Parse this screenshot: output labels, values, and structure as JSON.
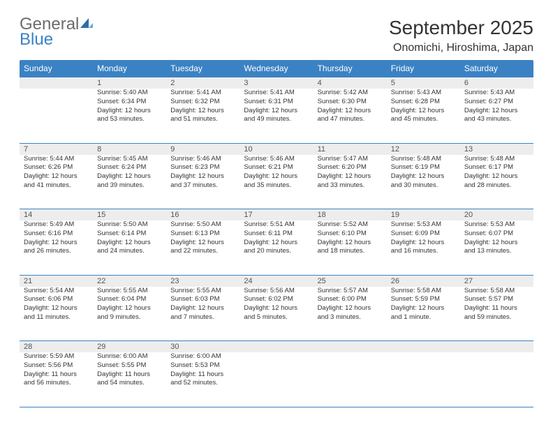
{
  "logo": {
    "word1": "General",
    "word2": "Blue"
  },
  "title": "September 2025",
  "location": "Onomichi, Hiroshima, Japan",
  "colors": {
    "brand_blue": "#3b82c4",
    "header_gray": "#6b6b6b",
    "daynum_bg": "#ededed",
    "text": "#333333",
    "background": "#ffffff"
  },
  "dow": [
    "Sunday",
    "Monday",
    "Tuesday",
    "Wednesday",
    "Thursday",
    "Friday",
    "Saturday"
  ],
  "weeks": [
    [
      null,
      {
        "n": "1",
        "l": [
          "Sunrise: 5:40 AM",
          "Sunset: 6:34 PM",
          "Daylight: 12 hours",
          "and 53 minutes."
        ]
      },
      {
        "n": "2",
        "l": [
          "Sunrise: 5:41 AM",
          "Sunset: 6:32 PM",
          "Daylight: 12 hours",
          "and 51 minutes."
        ]
      },
      {
        "n": "3",
        "l": [
          "Sunrise: 5:41 AM",
          "Sunset: 6:31 PM",
          "Daylight: 12 hours",
          "and 49 minutes."
        ]
      },
      {
        "n": "4",
        "l": [
          "Sunrise: 5:42 AM",
          "Sunset: 6:30 PM",
          "Daylight: 12 hours",
          "and 47 minutes."
        ]
      },
      {
        "n": "5",
        "l": [
          "Sunrise: 5:43 AM",
          "Sunset: 6:28 PM",
          "Daylight: 12 hours",
          "and 45 minutes."
        ]
      },
      {
        "n": "6",
        "l": [
          "Sunrise: 5:43 AM",
          "Sunset: 6:27 PM",
          "Daylight: 12 hours",
          "and 43 minutes."
        ]
      }
    ],
    [
      {
        "n": "7",
        "l": [
          "Sunrise: 5:44 AM",
          "Sunset: 6:26 PM",
          "Daylight: 12 hours",
          "and 41 minutes."
        ]
      },
      {
        "n": "8",
        "l": [
          "Sunrise: 5:45 AM",
          "Sunset: 6:24 PM",
          "Daylight: 12 hours",
          "and 39 minutes."
        ]
      },
      {
        "n": "9",
        "l": [
          "Sunrise: 5:46 AM",
          "Sunset: 6:23 PM",
          "Daylight: 12 hours",
          "and 37 minutes."
        ]
      },
      {
        "n": "10",
        "l": [
          "Sunrise: 5:46 AM",
          "Sunset: 6:21 PM",
          "Daylight: 12 hours",
          "and 35 minutes."
        ]
      },
      {
        "n": "11",
        "l": [
          "Sunrise: 5:47 AM",
          "Sunset: 6:20 PM",
          "Daylight: 12 hours",
          "and 33 minutes."
        ]
      },
      {
        "n": "12",
        "l": [
          "Sunrise: 5:48 AM",
          "Sunset: 6:19 PM",
          "Daylight: 12 hours",
          "and 30 minutes."
        ]
      },
      {
        "n": "13",
        "l": [
          "Sunrise: 5:48 AM",
          "Sunset: 6:17 PM",
          "Daylight: 12 hours",
          "and 28 minutes."
        ]
      }
    ],
    [
      {
        "n": "14",
        "l": [
          "Sunrise: 5:49 AM",
          "Sunset: 6:16 PM",
          "Daylight: 12 hours",
          "and 26 minutes."
        ]
      },
      {
        "n": "15",
        "l": [
          "Sunrise: 5:50 AM",
          "Sunset: 6:14 PM",
          "Daylight: 12 hours",
          "and 24 minutes."
        ]
      },
      {
        "n": "16",
        "l": [
          "Sunrise: 5:50 AM",
          "Sunset: 6:13 PM",
          "Daylight: 12 hours",
          "and 22 minutes."
        ]
      },
      {
        "n": "17",
        "l": [
          "Sunrise: 5:51 AM",
          "Sunset: 6:11 PM",
          "Daylight: 12 hours",
          "and 20 minutes."
        ]
      },
      {
        "n": "18",
        "l": [
          "Sunrise: 5:52 AM",
          "Sunset: 6:10 PM",
          "Daylight: 12 hours",
          "and 18 minutes."
        ]
      },
      {
        "n": "19",
        "l": [
          "Sunrise: 5:53 AM",
          "Sunset: 6:09 PM",
          "Daylight: 12 hours",
          "and 16 minutes."
        ]
      },
      {
        "n": "20",
        "l": [
          "Sunrise: 5:53 AM",
          "Sunset: 6:07 PM",
          "Daylight: 12 hours",
          "and 13 minutes."
        ]
      }
    ],
    [
      {
        "n": "21",
        "l": [
          "Sunrise: 5:54 AM",
          "Sunset: 6:06 PM",
          "Daylight: 12 hours",
          "and 11 minutes."
        ]
      },
      {
        "n": "22",
        "l": [
          "Sunrise: 5:55 AM",
          "Sunset: 6:04 PM",
          "Daylight: 12 hours",
          "and 9 minutes."
        ]
      },
      {
        "n": "23",
        "l": [
          "Sunrise: 5:55 AM",
          "Sunset: 6:03 PM",
          "Daylight: 12 hours",
          "and 7 minutes."
        ]
      },
      {
        "n": "24",
        "l": [
          "Sunrise: 5:56 AM",
          "Sunset: 6:02 PM",
          "Daylight: 12 hours",
          "and 5 minutes."
        ]
      },
      {
        "n": "25",
        "l": [
          "Sunrise: 5:57 AM",
          "Sunset: 6:00 PM",
          "Daylight: 12 hours",
          "and 3 minutes."
        ]
      },
      {
        "n": "26",
        "l": [
          "Sunrise: 5:58 AM",
          "Sunset: 5:59 PM",
          "Daylight: 12 hours",
          "and 1 minute."
        ]
      },
      {
        "n": "27",
        "l": [
          "Sunrise: 5:58 AM",
          "Sunset: 5:57 PM",
          "Daylight: 11 hours",
          "and 59 minutes."
        ]
      }
    ],
    [
      {
        "n": "28",
        "l": [
          "Sunrise: 5:59 AM",
          "Sunset: 5:56 PM",
          "Daylight: 11 hours",
          "and 56 minutes."
        ]
      },
      {
        "n": "29",
        "l": [
          "Sunrise: 6:00 AM",
          "Sunset: 5:55 PM",
          "Daylight: 11 hours",
          "and 54 minutes."
        ]
      },
      {
        "n": "30",
        "l": [
          "Sunrise: 6:00 AM",
          "Sunset: 5:53 PM",
          "Daylight: 11 hours",
          "and 52 minutes."
        ]
      },
      null,
      null,
      null,
      null
    ]
  ]
}
